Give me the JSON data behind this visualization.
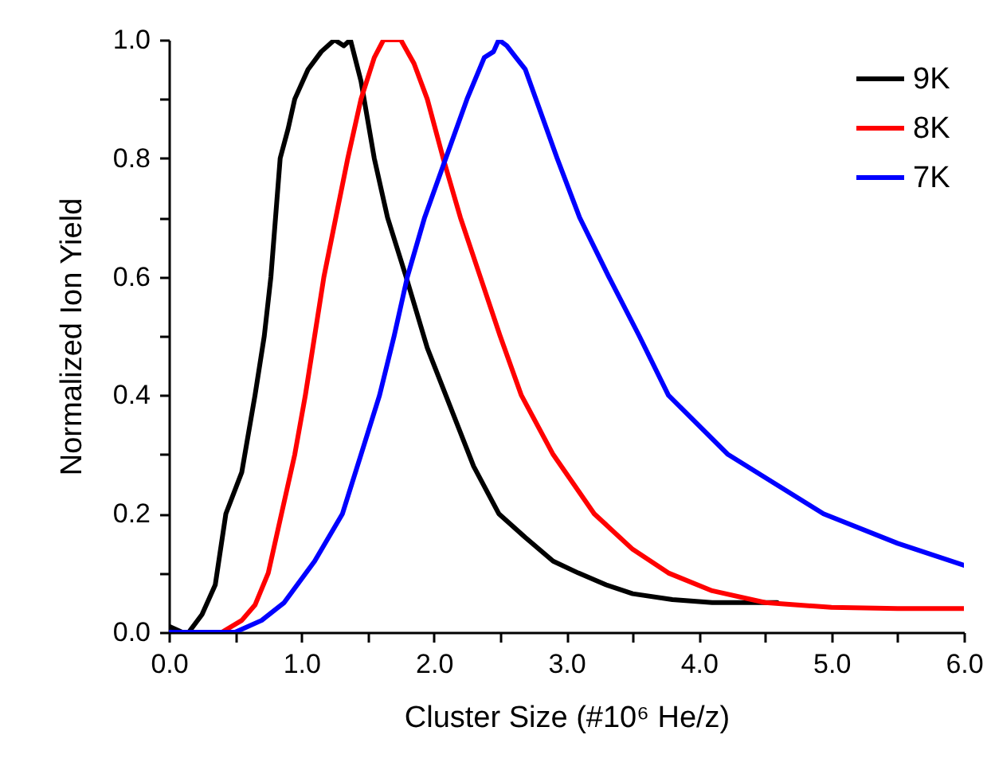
{
  "chart_data": {
    "type": "line",
    "xlabel": "Cluster Size (#10⁶ He/z)",
    "ylabel": "Normalized Ion Yield",
    "xlim": [
      0,
      6
    ],
    "ylim": [
      0,
      1
    ],
    "xticks": [
      {
        "value": 0,
        "label": "0.0"
      },
      {
        "value": 0.5,
        "label": null
      },
      {
        "value": 1,
        "label": "1.0"
      },
      {
        "value": 1.5,
        "label": null
      },
      {
        "value": 2,
        "label": "2.0"
      },
      {
        "value": 2.5,
        "label": null
      },
      {
        "value": 3,
        "label": "3.0"
      },
      {
        "value": 3.5,
        "label": null
      },
      {
        "value": 4,
        "label": "4.0"
      },
      {
        "value": 4.5,
        "label": null
      },
      {
        "value": 5,
        "label": "5.0"
      },
      {
        "value": 5.5,
        "label": null
      },
      {
        "value": 6,
        "label": "6.0"
      }
    ],
    "yticks": [
      {
        "value": 0,
        "label": "0.0"
      },
      {
        "value": 0.1,
        "label": null
      },
      {
        "value": 0.2,
        "label": "0.2"
      },
      {
        "value": 0.3,
        "label": null
      },
      {
        "value": 0.4,
        "label": "0.4"
      },
      {
        "value": 0.5,
        "label": null
      },
      {
        "value": 0.6,
        "label": "0.6"
      },
      {
        "value": 0.7,
        "label": null
      },
      {
        "value": 0.8,
        "label": "0.8"
      },
      {
        "value": 0.9,
        "label": null
      },
      {
        "value": 1,
        "label": "1.0"
      }
    ],
    "grid": false,
    "legend": "top right",
    "line_style": "solid",
    "series": [
      {
        "name": "9K",
        "color": "#000000",
        "x": [
          0,
          0.1,
          0.15,
          0.25,
          0.35,
          0.43,
          0.55,
          0.65,
          0.72,
          0.77,
          0.84,
          0.9,
          0.95,
          1.05,
          1.15,
          1.25,
          1.32,
          1.37,
          1.45,
          1.55,
          1.65,
          1.79,
          1.95,
          2.09,
          2.3,
          2.49,
          2.69,
          2.9,
          3.09,
          3.3,
          3.5,
          3.8,
          4.1,
          4.59
        ],
        "values": [
          0.01,
          0,
          0,
          0.03,
          0.08,
          0.2,
          0.27,
          0.4,
          0.5,
          0.6,
          0.8,
          0.85,
          0.9,
          0.95,
          0.98,
          1,
          0.99,
          1,
          0.93,
          0.8,
          0.7,
          0.6,
          0.48,
          0.4,
          0.28,
          0.2,
          0.16,
          0.12,
          0.1,
          0.08,
          0.065,
          0.055,
          0.05,
          0.05
        ]
      },
      {
        "name": "8K",
        "color": "#ff0000",
        "x": [
          0,
          0.4,
          0.55,
          0.65,
          0.75,
          0.85,
          0.95,
          1.03,
          1.1,
          1.17,
          1.26,
          1.35,
          1.45,
          1.55,
          1.62,
          1.75,
          1.85,
          1.95,
          2.07,
          2.2,
          2.35,
          2.5,
          2.66,
          2.9,
          3.21,
          3.5,
          3.77,
          4.1,
          4.5,
          5,
          5.5,
          6
        ],
        "values": [
          0,
          0,
          0.02,
          0.046,
          0.1,
          0.2,
          0.3,
          0.4,
          0.5,
          0.6,
          0.7,
          0.8,
          0.9,
          0.97,
          1,
          1,
          0.96,
          0.9,
          0.8,
          0.7,
          0.6,
          0.5,
          0.4,
          0.3,
          0.2,
          0.14,
          0.1,
          0.07,
          0.05,
          0.042,
          0.04,
          0.04
        ]
      },
      {
        "name": "7K",
        "color": "#0000ff",
        "x": [
          0,
          0.5,
          0.7,
          0.87,
          1.1,
          1.31,
          1.45,
          1.59,
          1.7,
          1.8,
          1.93,
          2.09,
          2.25,
          2.38,
          2.45,
          2.49,
          2.55,
          2.62,
          2.69,
          2.93,
          3.1,
          3.32,
          3.55,
          3.77,
          4.22,
          4.94,
          5.5,
          6
        ],
        "values": [
          0,
          0,
          0.02,
          0.05,
          0.12,
          0.2,
          0.3,
          0.4,
          0.5,
          0.6,
          0.7,
          0.8,
          0.9,
          0.97,
          0.98,
          1,
          0.99,
          0.97,
          0.95,
          0.8,
          0.7,
          0.6,
          0.5,
          0.4,
          0.3,
          0.2,
          0.15,
          0.113
        ]
      }
    ]
  }
}
